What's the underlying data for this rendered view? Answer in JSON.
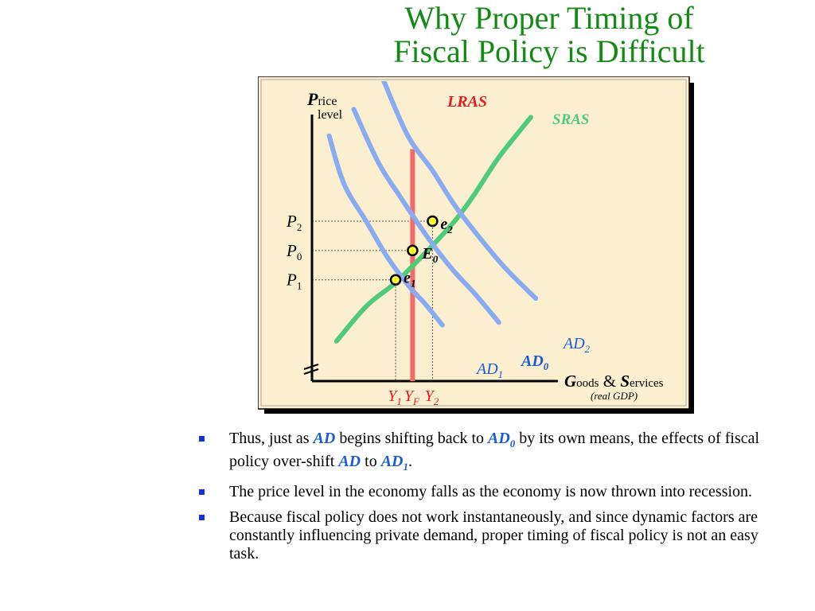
{
  "slide": {
    "title_line1": "Why Proper Timing of",
    "title_line2": "Fiscal Policy is Difficult"
  },
  "colors": {
    "title": "#138a13",
    "panel_bg": "#fbefd0",
    "lras": "#f26a6a",
    "sras": "#4fcc7a",
    "ad": "#8aaaf2",
    "curve_labels_blue": "#1a5bd6",
    "equilibrium_marker_fill": "#ffff33",
    "bullet": "#1a2fd6"
  },
  "chart_data": {
    "type": "line",
    "title": "",
    "ylabel": {
      "initial": "P",
      "rest": "rice",
      "line2": "level"
    },
    "xlabel": {
      "initial1": "G",
      "rest1": "oods",
      "amp": "&",
      "initial2": "S",
      "rest2": "ervices",
      "note": "(real GDP)"
    },
    "xlim": [
      0,
      100
    ],
    "ylim": [
      0,
      100
    ],
    "axis_break_marks": true,
    "curves": [
      {
        "id": "sras",
        "name": "SRAS",
        "points": [
          [
            10,
            15
          ],
          [
            22,
            28
          ],
          [
            34,
            37
          ],
          [
            46,
            48
          ],
          [
            58,
            60
          ],
          [
            66,
            70
          ],
          [
            76,
            84
          ],
          [
            89,
            99
          ]
        ]
      },
      {
        "id": "ad1",
        "name_base": "AD",
        "name_sub": "1",
        "points": [
          [
            7,
            92
          ],
          [
            13,
            74
          ],
          [
            22,
            60
          ],
          [
            31,
            46
          ],
          [
            40,
            35
          ],
          [
            46,
            29
          ],
          [
            53,
            21
          ]
        ]
      },
      {
        "id": "ad0",
        "name_base": "AD",
        "name_sub": "0",
        "points": [
          [
            17,
            102
          ],
          [
            27,
            82
          ],
          [
            36,
            69
          ],
          [
            47,
            54
          ],
          [
            57,
            42
          ],
          [
            66,
            33
          ],
          [
            76,
            22
          ]
        ]
      },
      {
        "id": "ad2",
        "name_base": "AD",
        "name_sub": "2",
        "points": [
          [
            29,
            113
          ],
          [
            39,
            92
          ],
          [
            49,
            79
          ],
          [
            58,
            66
          ],
          [
            68,
            54
          ],
          [
            79,
            42
          ],
          [
            91,
            31
          ]
        ]
      }
    ],
    "lras": {
      "name": "LRAS",
      "x": 40.9
    },
    "equilibria": [
      {
        "id": "e2",
        "label_base": "e",
        "label_sub": "2",
        "x": 49,
        "y": 60
      },
      {
        "id": "e0",
        "label_base": "E",
        "label_sub": "0",
        "x": 40.9,
        "y": 49
      },
      {
        "id": "e1",
        "label_base": "e",
        "label_sub": "1",
        "x": 34,
        "y": 38
      }
    ],
    "y_ticks": [
      {
        "id": "p2",
        "base": "P",
        "sub": "2",
        "y": 60
      },
      {
        "id": "p0",
        "base": "P",
        "sub": "0",
        "y": 49
      },
      {
        "id": "p1",
        "base": "P",
        "sub": "1",
        "y": 38
      }
    ],
    "x_ticks": [
      {
        "id": "y1",
        "base": "Y",
        "sub": "1",
        "x": 34
      },
      {
        "id": "yf",
        "base": "Y",
        "sub": "F",
        "x": 40.9
      },
      {
        "id": "y2",
        "base": "Y",
        "sub": "2",
        "x": 49
      }
    ]
  },
  "bullets": [
    {
      "parts": [
        {
          "t": "Thus, just as "
        },
        {
          "t": "AD",
          "hl": true
        },
        {
          "t": " begins shifting back to "
        },
        {
          "t": "AD",
          "hl": true,
          "sub": "0"
        },
        {
          "t": " by its own means, the effects of fiscal policy over-shift "
        },
        {
          "t": "AD",
          "hl": true
        },
        {
          "t": " to "
        },
        {
          "t": "AD",
          "hl": true,
          "sub": "1"
        },
        {
          "t": "."
        }
      ]
    },
    {
      "parts": [
        {
          "t": "The price level in the economy falls as the economy is now thrown into recession."
        }
      ]
    },
    {
      "parts": [
        {
          "t": "Because fiscal policy does not work instantaneously, and since dynamic factors are constantly influencing private demand, proper timing of fiscal policy is not an easy task."
        }
      ]
    }
  ]
}
